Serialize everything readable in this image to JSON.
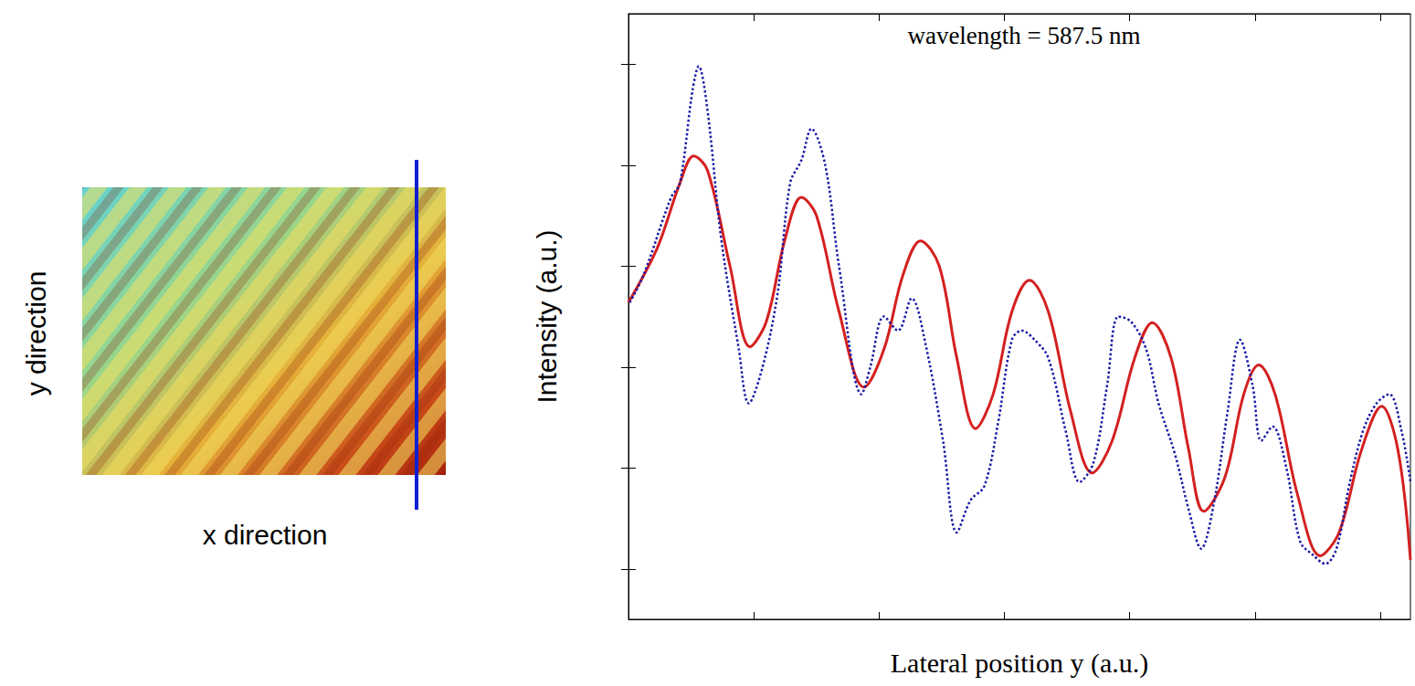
{
  "image_panel": {
    "x_label": "x direction",
    "y_label": "y direction"
  },
  "chart_data": {
    "type": "line",
    "title": "wavelength = 587.5 nm",
    "x_label": "Lateral position y (a.u.)",
    "y_label": "Intensity (a.u.)",
    "xlim": [
      0,
      6.24
    ],
    "xticks": [
      1,
      2,
      3,
      4,
      5,
      6
    ],
    "ylim": [
      0.5,
      6.5
    ],
    "yticks": [
      1,
      2,
      3,
      4,
      5,
      6
    ],
    "grid": false,
    "tick_labels": false,
    "series": [
      {
        "color": "#d42020",
        "line_style": "solid",
        "x": [
          0,
          0.23,
          0.41,
          0.52,
          0.63,
          0.81,
          0.97,
          1.1,
          1.25,
          1.38,
          1.5,
          1.68,
          1.88,
          2.04,
          2.19,
          2.33,
          2.48,
          2.62,
          2.77,
          2.91,
          3.06,
          3.2,
          3.35,
          3.53,
          3.7,
          3.86,
          4.04,
          4.18,
          4.33,
          4.47,
          4.59,
          4.76,
          4.91,
          5.03,
          5.16,
          5.34,
          5.52,
          5.67,
          5.85,
          6.01,
          6.14,
          6.24
        ],
        "values": [
          3.64,
          4.18,
          4.82,
          5.09,
          4.95,
          4.0,
          3.2,
          3.45,
          4.27,
          4.68,
          4.5,
          3.55,
          2.8,
          3.18,
          3.91,
          4.25,
          4.0,
          3.09,
          2.39,
          2.73,
          3.55,
          3.86,
          3.55,
          2.55,
          1.95,
          2.27,
          3.09,
          3.44,
          3.09,
          2.18,
          1.57,
          1.91,
          2.73,
          3.02,
          2.73,
          1.73,
          1.13,
          1.36,
          2.18,
          2.61,
          2.18,
          1.09
        ]
      },
      {
        "color": "#1a1aa8",
        "line_style": "dotted",
        "x": [
          0.01,
          0.12,
          0.34,
          0.41,
          0.51,
          0.56,
          0.63,
          0.74,
          0.88,
          0.96,
          1.07,
          1.19,
          1.29,
          1.38,
          1.46,
          1.57,
          1.68,
          1.86,
          1.93,
          2.04,
          2.15,
          2.26,
          2.37,
          2.51,
          2.62,
          2.73,
          2.84,
          2.95,
          3.06,
          3.14,
          3.24,
          3.35,
          3.49,
          3.6,
          3.71,
          3.82,
          3.91,
          4.01,
          4.13,
          4.23,
          4.36,
          4.47,
          4.57,
          4.67,
          4.78,
          4.88,
          4.98,
          5.05,
          5.14,
          5.25,
          5.36,
          5.46,
          5.56,
          5.65,
          5.75,
          5.86,
          5.97,
          6.07,
          6.17,
          6.24
        ],
        "values": [
          3.64,
          3.91,
          4.68,
          4.82,
          5.73,
          5.98,
          5.55,
          4.27,
          3.18,
          2.64,
          3.0,
          3.73,
          4.82,
          5.05,
          5.36,
          5.0,
          4.0,
          2.73,
          3.0,
          3.5,
          3.36,
          3.68,
          3.23,
          2.27,
          1.36,
          1.68,
          1.82,
          2.45,
          3.27,
          3.36,
          3.27,
          3.09,
          2.36,
          1.86,
          2.05,
          2.82,
          3.5,
          3.45,
          3.18,
          2.64,
          2.14,
          1.59,
          1.2,
          1.64,
          2.55,
          3.27,
          2.82,
          2.27,
          2.41,
          2.0,
          1.27,
          1.14,
          1.05,
          1.2,
          1.82,
          2.36,
          2.64,
          2.73,
          2.36,
          1.86
        ]
      }
    ]
  }
}
